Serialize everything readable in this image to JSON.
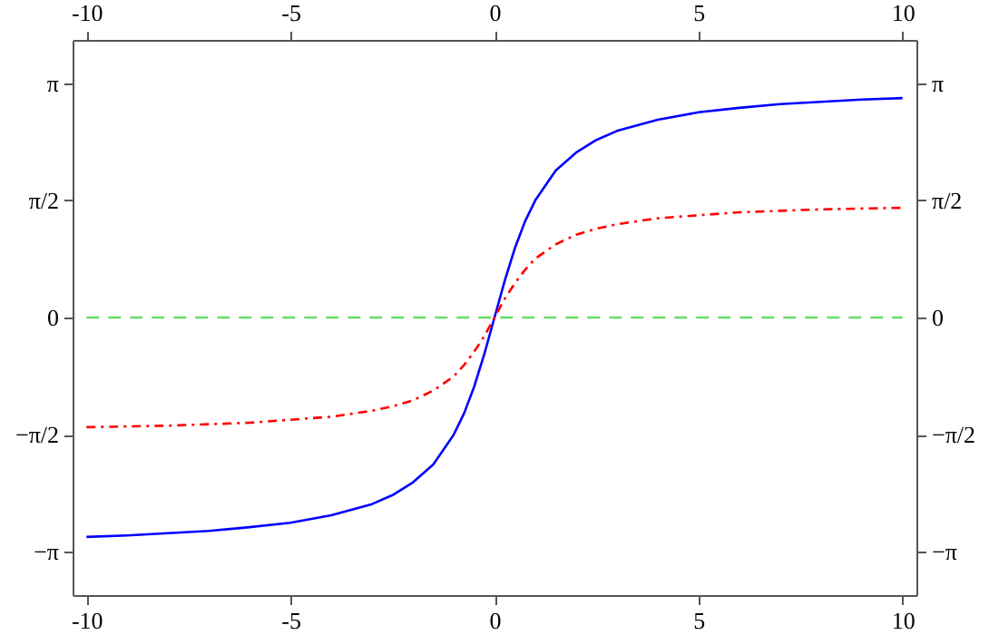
{
  "chart_data": {
    "type": "line",
    "xlim": [
      -10.34,
      10.34
    ],
    "xticks": [
      -10,
      -5,
      0,
      5,
      10
    ],
    "x2lim": [
      -10.34,
      10.34
    ],
    "x2ticks": [
      -10,
      -5,
      0,
      5,
      10
    ],
    "ylim": [
      -3.72,
      3.72
    ],
    "yticks": [
      {
        "value": -3.1416,
        "label": "−π"
      },
      {
        "value": -1.5708,
        "label": "−π/2"
      },
      0,
      {
        "value": 1.5708,
        "label": "π/2"
      },
      {
        "value": 3.1416,
        "label": "π"
      }
    ],
    "y2lim": [
      -3.72,
      3.72
    ],
    "y2ticks": [
      {
        "value": -3.1416,
        "label": "−π"
      },
      {
        "value": -1.5708,
        "label": "−π/2"
      },
      0,
      {
        "value": 1.5708,
        "label": "π/2"
      },
      {
        "value": 3.1416,
        "label": "π"
      }
    ],
    "grid": false,
    "x": [
      -10,
      -9,
      -8,
      -7,
      -6,
      -5,
      -4,
      -3,
      -2.5,
      -2,
      -1.5,
      -1,
      -0.75,
      -0.5,
      -0.25,
      0,
      0.25,
      0.5,
      0.75,
      1,
      1.5,
      2,
      2.5,
      3,
      4,
      5,
      6,
      7,
      8,
      9,
      10
    ],
    "series": [
      {
        "color": "#0000ff",
        "line_style": "solid",
        "values": [
          -2.94,
          -2.92,
          -2.89,
          -2.86,
          -2.81,
          -2.75,
          -2.65,
          -2.5,
          -2.38,
          -2.21,
          -1.97,
          -1.57,
          -1.29,
          -0.93,
          -0.49,
          0,
          0.49,
          0.93,
          1.29,
          1.57,
          1.97,
          2.21,
          2.38,
          2.5,
          2.65,
          2.75,
          2.81,
          2.86,
          2.89,
          2.92,
          2.94
        ]
      },
      {
        "color": "#ff0000",
        "line_style": "dashdot",
        "values": [
          -1.47,
          -1.46,
          -1.45,
          -1.43,
          -1.41,
          -1.37,
          -1.33,
          -1.25,
          -1.19,
          -1.11,
          -0.98,
          -0.79,
          -0.64,
          -0.46,
          -0.25,
          0,
          0.25,
          0.46,
          0.64,
          0.79,
          0.98,
          1.11,
          1.19,
          1.25,
          1.33,
          1.37,
          1.41,
          1.43,
          1.45,
          1.46,
          1.47
        ]
      },
      {
        "color": "#66dd66",
        "line_style": "dashed",
        "x": [
          -10,
          10
        ],
        "values": [
          0,
          0
        ]
      }
    ]
  }
}
